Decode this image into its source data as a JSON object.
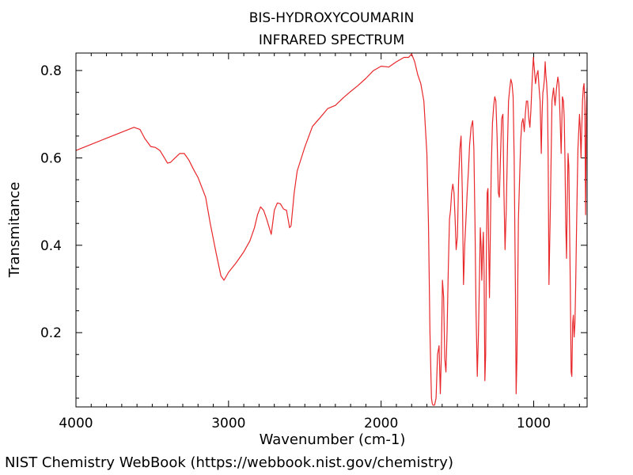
{
  "chart_data": {
    "type": "line",
    "title": "BIS-HYDROXYCOUMARIN",
    "subtitle": "INFRARED SPECTRUM",
    "xlabel": "Wavenumber (cm-1)",
    "ylabel": "Transmitance",
    "xlim": [
      4000,
      650
    ],
    "ylim": [
      0.03,
      0.84
    ],
    "x_reversed": true,
    "xticks": [
      4000,
      3000,
      2000,
      1000
    ],
    "yticks": [
      0.2,
      0.4,
      0.6,
      0.8
    ],
    "tick_labels_x": [
      "4000",
      "3000",
      "2000",
      "1000"
    ],
    "tick_labels_y": [
      "0.2",
      "0.4",
      "0.6",
      "0.8"
    ],
    "grid": false,
    "legend": "none",
    "series": [
      {
        "color": "#e8282b",
        "x": [
          4000,
          3900,
          3800,
          3700,
          3620,
          3580,
          3550,
          3510,
          3480,
          3450,
          3420,
          3400,
          3380,
          3350,
          3320,
          3290,
          3260,
          3230,
          3200,
          3150,
          3120,
          3080,
          3050,
          3030,
          3000,
          2950,
          2900,
          2860,
          2830,
          2810,
          2790,
          2770,
          2750,
          2720,
          2700,
          2680,
          2660,
          2640,
          2620,
          2600,
          2590,
          2570,
          2550,
          2500,
          2450,
          2400,
          2350,
          2300,
          2250,
          2200,
          2150,
          2100,
          2050,
          2000,
          1950,
          1900,
          1850,
          1820,
          1800,
          1780,
          1760,
          1740,
          1720,
          1710,
          1700,
          1690,
          1680,
          1670,
          1665,
          1660,
          1655,
          1650,
          1640,
          1630,
          1620,
          1612,
          1605,
          1598,
          1590,
          1583,
          1575,
          1568,
          1560,
          1552,
          1545,
          1538,
          1530,
          1522,
          1515,
          1508,
          1500,
          1492,
          1484,
          1476,
          1468,
          1460,
          1452,
          1444,
          1436,
          1428,
          1420,
          1410,
          1400,
          1392,
          1385,
          1378,
          1370,
          1362,
          1355,
          1350,
          1345,
          1340,
          1335,
          1330,
          1325,
          1320,
          1315,
          1310,
          1305,
          1300,
          1295,
          1290,
          1285,
          1278,
          1270,
          1262,
          1255,
          1248,
          1240,
          1232,
          1225,
          1218,
          1210,
          1202,
          1195,
          1188,
          1180,
          1172,
          1165,
          1158,
          1150,
          1142,
          1135,
          1128,
          1120,
          1115,
          1110,
          1105,
          1100,
          1092,
          1085,
          1078,
          1070,
          1062,
          1055,
          1048,
          1040,
          1032,
          1025,
          1018,
          1010,
          1002,
          995,
          988,
          980,
          972,
          965,
          958,
          950,
          945,
          940,
          935,
          930,
          925,
          920,
          915,
          910,
          905,
          900,
          890,
          880,
          870,
          860,
          850,
          842,
          835,
          828,
          820,
          812,
          805,
          800,
          795,
          790,
          785,
          780,
          775,
          770,
          765,
          760,
          755,
          750,
          745,
          740,
          735,
          730,
          725,
          720,
          715,
          710,
          705,
          700,
          695,
          690,
          685,
          680,
          675,
          670,
          665,
          660,
          655,
          650
        ],
        "y": [
          0.617,
          0.631,
          0.645,
          0.659,
          0.67,
          0.665,
          0.645,
          0.626,
          0.624,
          0.617,
          0.6,
          0.588,
          0.59,
          0.6,
          0.61,
          0.61,
          0.595,
          0.574,
          0.555,
          0.51,
          0.45,
          0.38,
          0.33,
          0.32,
          0.338,
          0.36,
          0.385,
          0.41,
          0.44,
          0.47,
          0.488,
          0.48,
          0.46,
          0.425,
          0.48,
          0.497,
          0.495,
          0.483,
          0.48,
          0.44,
          0.445,
          0.52,
          0.57,
          0.625,
          0.672,
          0.692,
          0.713,
          0.72,
          0.737,
          0.752,
          0.766,
          0.782,
          0.8,
          0.81,
          0.808,
          0.82,
          0.83,
          0.83,
          0.838,
          0.82,
          0.79,
          0.77,
          0.73,
          0.67,
          0.61,
          0.45,
          0.2,
          0.05,
          0.038,
          0.034,
          0.034,
          0.034,
          0.05,
          0.15,
          0.17,
          0.06,
          0.15,
          0.32,
          0.28,
          0.14,
          0.11,
          0.2,
          0.34,
          0.46,
          0.48,
          0.52,
          0.54,
          0.52,
          0.46,
          0.39,
          0.42,
          0.55,
          0.62,
          0.65,
          0.52,
          0.31,
          0.4,
          0.46,
          0.52,
          0.57,
          0.63,
          0.67,
          0.685,
          0.62,
          0.45,
          0.25,
          0.1,
          0.2,
          0.34,
          0.44,
          0.4,
          0.32,
          0.39,
          0.43,
          0.34,
          0.09,
          0.15,
          0.38,
          0.52,
          0.53,
          0.4,
          0.28,
          0.4,
          0.58,
          0.68,
          0.72,
          0.74,
          0.73,
          0.65,
          0.52,
          0.51,
          0.6,
          0.69,
          0.7,
          0.52,
          0.39,
          0.48,
          0.62,
          0.73,
          0.755,
          0.78,
          0.77,
          0.74,
          0.6,
          0.3,
          0.06,
          0.14,
          0.3,
          0.46,
          0.56,
          0.64,
          0.68,
          0.69,
          0.66,
          0.7,
          0.73,
          0.73,
          0.69,
          0.67,
          0.71,
          0.78,
          0.83,
          0.8,
          0.77,
          0.79,
          0.8,
          0.76,
          0.73,
          0.61,
          0.7,
          0.75,
          0.76,
          0.78,
          0.82,
          0.79,
          0.77,
          0.73,
          0.6,
          0.31,
          0.5,
          0.73,
          0.76,
          0.72,
          0.76,
          0.785,
          0.77,
          0.7,
          0.61,
          0.74,
          0.73,
          0.69,
          0.6,
          0.45,
          0.37,
          0.5,
          0.61,
          0.58,
          0.45,
          0.3,
          0.11,
          0.1,
          0.22,
          0.24,
          0.19,
          0.22,
          0.3,
          0.42,
          0.53,
          0.62,
          0.66,
          0.7,
          0.67,
          0.6,
          0.67,
          0.73,
          0.76,
          0.77,
          0.73,
          0.47,
          0.7,
          0.76
        ]
      }
    ]
  },
  "footer": "NIST Chemistry WebBook (https://webbook.nist.gov/chemistry)"
}
